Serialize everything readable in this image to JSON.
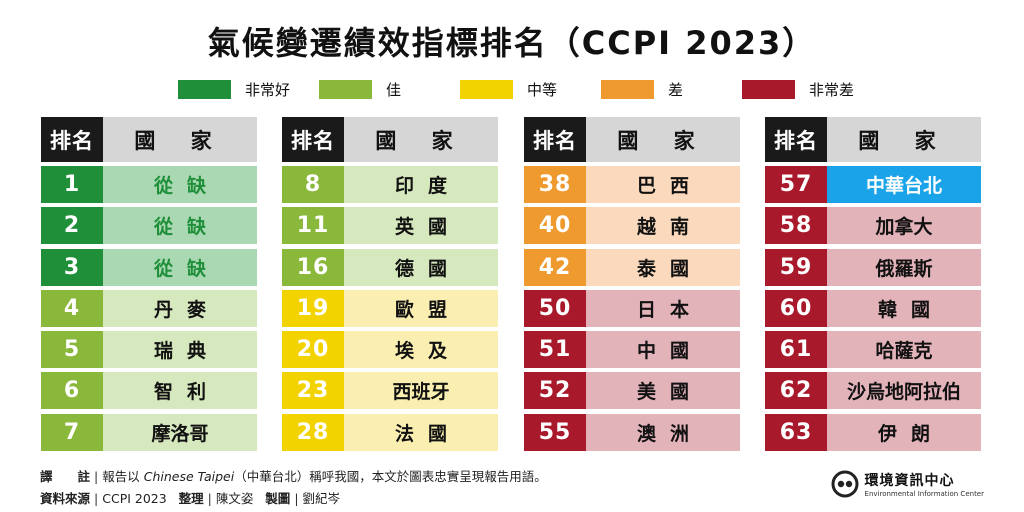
{
  "title": "氣候變遷績效指標排名（CCPI 2023）",
  "legend": [
    {
      "label": "非常好",
      "color": "#1f8f3a"
    },
    {
      "label": "佳",
      "color": "#8ab83a"
    },
    {
      "label": "中等",
      "color": "#f2d300"
    },
    {
      "label": "差",
      "color": "#ef9a2e"
    },
    {
      "label": "非常差",
      "color": "#a8192b"
    }
  ],
  "headers": {
    "rank": "排名",
    "country": "國 家"
  },
  "rating_colors": {
    "very_good": {
      "rank": "#1f8f3a",
      "country": "#a9d8b2",
      "text": "#1f8f3a"
    },
    "good": {
      "rank": "#8ab83a",
      "country": "#d6e8be",
      "text": "#111111"
    },
    "medium": {
      "rank": "#f2d300",
      "country": "#faefb0",
      "text": "#111111"
    },
    "poor": {
      "rank": "#ef9a2e",
      "country": "#fad9bd",
      "text": "#111111"
    },
    "very_poor": {
      "rank": "#a8192b",
      "country": "#e3b3ba",
      "text": "#111111"
    },
    "highlight": {
      "rank": "#a8192b",
      "country": "#1aa3e8",
      "text": "#ffffff"
    }
  },
  "tables": [
    {
      "rows": [
        {
          "rank": "1",
          "country": "從缺",
          "rating": "very_good"
        },
        {
          "rank": "2",
          "country": "從缺",
          "rating": "very_good"
        },
        {
          "rank": "3",
          "country": "從缺",
          "rating": "very_good"
        },
        {
          "rank": "4",
          "country": "丹麥",
          "rating": "good"
        },
        {
          "rank": "5",
          "country": "瑞典",
          "rating": "good"
        },
        {
          "rank": "6",
          "country": "智利",
          "rating": "good"
        },
        {
          "rank": "7",
          "country": "摩洛哥",
          "rating": "good"
        }
      ]
    },
    {
      "rows": [
        {
          "rank": "8",
          "country": "印度",
          "rating": "good"
        },
        {
          "rank": "11",
          "country": "英國",
          "rating": "good"
        },
        {
          "rank": "16",
          "country": "德國",
          "rating": "good"
        },
        {
          "rank": "19",
          "country": "歐盟",
          "rating": "medium"
        },
        {
          "rank": "20",
          "country": "埃及",
          "rating": "medium"
        },
        {
          "rank": "23",
          "country": "西班牙",
          "rating": "medium"
        },
        {
          "rank": "28",
          "country": "法國",
          "rating": "medium"
        }
      ]
    },
    {
      "rows": [
        {
          "rank": "38",
          "country": "巴西",
          "rating": "poor"
        },
        {
          "rank": "40",
          "country": "越南",
          "rating": "poor"
        },
        {
          "rank": "42",
          "country": "泰國",
          "rating": "poor"
        },
        {
          "rank": "50",
          "country": "日本",
          "rating": "very_poor"
        },
        {
          "rank": "51",
          "country": "中國",
          "rating": "very_poor"
        },
        {
          "rank": "52",
          "country": "美國",
          "rating": "very_poor"
        },
        {
          "rank": "55",
          "country": "澳洲",
          "rating": "very_poor"
        }
      ]
    },
    {
      "rows": [
        {
          "rank": "57",
          "country": "中華台北",
          "rating": "highlight"
        },
        {
          "rank": "58",
          "country": "加拿大",
          "rating": "very_poor"
        },
        {
          "rank": "59",
          "country": "俄羅斯",
          "rating": "very_poor"
        },
        {
          "rank": "60",
          "country": "韓國",
          "rating": "very_poor"
        },
        {
          "rank": "61",
          "country": "哈薩克",
          "rating": "very_poor"
        },
        {
          "rank": "62",
          "country": "沙烏地阿拉伯",
          "rating": "very_poor"
        },
        {
          "rank": "63",
          "country": "伊朗",
          "rating": "very_poor"
        }
      ]
    }
  ],
  "footer": {
    "note_label": "譯　　註",
    "note_text_1": "報告以",
    "note_italic": "Chinese Taipei",
    "note_text_2": "（中華台北）稱呼我國，本文於圖表忠實呈現報告用語。",
    "source_label": "資料來源",
    "source_value": "CCPI 2023",
    "editor_label": "整理",
    "editor_value": "陳文姿",
    "design_label": "製圖",
    "design_value": "劉紀岑"
  },
  "logo": {
    "name": "環境資訊中心",
    "subtitle": "Environmental Information Center",
    "icon": "eic-logo-icon"
  }
}
